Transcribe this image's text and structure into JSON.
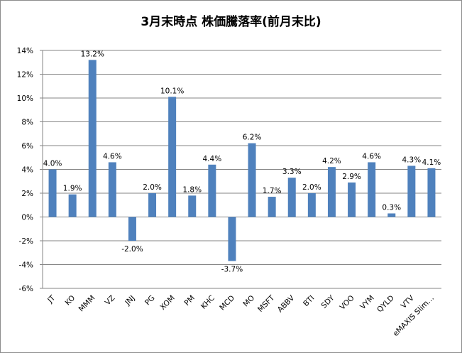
{
  "chart_data": {
    "type": "bar",
    "title": "3月末時点  株価騰落率(前月末比)",
    "xlabel": "",
    "ylabel": "",
    "categories": [
      "JT",
      "KO",
      "MMM",
      "VZ",
      "JNJ",
      "PG",
      "XOM",
      "PM",
      "KHC",
      "MCD",
      "MO",
      "MSFT",
      "ABBV",
      "BTI",
      "SDY",
      "VOO",
      "VYM",
      "QYLD",
      "VTV",
      "eMAXIS Slim…"
    ],
    "values": [
      4.0,
      1.9,
      13.2,
      4.6,
      -2.0,
      2.0,
      10.1,
      1.8,
      4.4,
      -3.7,
      6.2,
      1.7,
      3.3,
      2.0,
      4.2,
      2.9,
      4.6,
      0.3,
      4.3,
      4.1
    ],
    "data_labels": [
      "4.0%",
      "1.9%",
      "13.2%",
      "4.6%",
      "-2.0%",
      "2.0%",
      "10.1%",
      "1.8%",
      "4.4%",
      "-3.7%",
      "6.2%",
      "1.7%",
      "3.3%",
      "2.0%",
      "4.2%",
      "2.9%",
      "4.6%",
      "0.3%",
      "4.3%",
      "4.1%"
    ],
    "ylim": [
      -6,
      14
    ],
    "yticks": [
      14,
      12,
      10,
      8,
      6,
      4,
      2,
      0,
      -2,
      -4,
      -6
    ],
    "ytick_labels": [
      "14%",
      "12%",
      "10%",
      "8%",
      "6%",
      "4%",
      "2%",
      "0%",
      "-2%",
      "-4%",
      "-6%"
    ],
    "grid": true,
    "legend": "none",
    "bar_color": "#4f81bd",
    "grid_color": "#868686"
  }
}
